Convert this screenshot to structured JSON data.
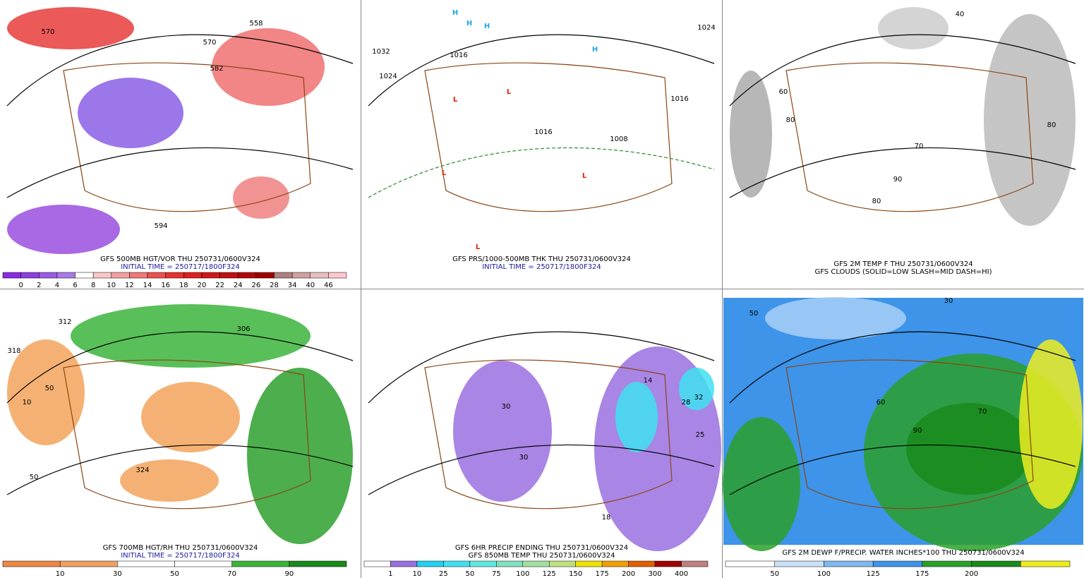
{
  "panels": [
    {
      "captions": [
        "GFS 500MB HGT/VOR THU 250731/0600V324",
        "INITIAL TIME = 250717/1800F324"
      ],
      "labels": [
        "570",
        "558",
        "570",
        "582",
        "594"
      ],
      "colorbar": [
        "0",
        "2",
        "4",
        "6",
        "8",
        "10",
        "12",
        "14",
        "16",
        "18",
        "20",
        "22",
        "24",
        "26",
        "28",
        "34",
        "40",
        "46"
      ]
    },
    {
      "captions": [
        "GFS PRS/1000-500MB THK THU 250731/0600V324",
        "INITIAL TIME = 250717/1800F324"
      ],
      "labels": [
        "1032",
        "1024",
        "1016",
        "1016",
        "1008",
        "1024",
        "1016",
        "H",
        "H",
        "H",
        "H",
        "L",
        "L",
        "L",
        "L",
        "L"
      ],
      "colorbar": []
    },
    {
      "captions": [
        "GFS 2M TEMP F THU 250731/0600V324",
        "GFS CLOUDS (SOLID=LOW SLASH=MID DASH=HI)"
      ],
      "labels": [
        "40",
        "60",
        "80",
        "70",
        "90",
        "80",
        "80"
      ],
      "colorbar": []
    },
    {
      "captions": [
        "GFS 700MB HGT/RH THU 250731/0600V324",
        "INITIAL TIME = 250717/1800F324"
      ],
      "labels": [
        "312",
        "318",
        "306",
        "324",
        "50",
        "10",
        "50"
      ],
      "colorbar": [
        "10",
        "30",
        "50",
        "70",
        "90"
      ]
    },
    {
      "captions": [
        "GFS 6HR PRECIP ENDING THU 250731/0600V324",
        "GFS 850MB TEMP THU 250731/0600V324"
      ],
      "labels": [
        "28",
        "32",
        "25",
        "14",
        "18",
        "30",
        "30"
      ],
      "colorbar": [
        "1",
        "10",
        "25",
        "50",
        "75",
        "100",
        "125",
        "150",
        "175",
        "200",
        "300",
        "400"
      ]
    },
    {
      "captions": [
        "GFS 2M DEWP F/PRECIP. WATER INCHES*100 THU 250731/0600V324"
      ],
      "labels": [
        "50",
        "60",
        "70",
        "90",
        "30"
      ],
      "colorbar": [
        "50",
        "100",
        "125",
        "175",
        "200"
      ]
    }
  ]
}
